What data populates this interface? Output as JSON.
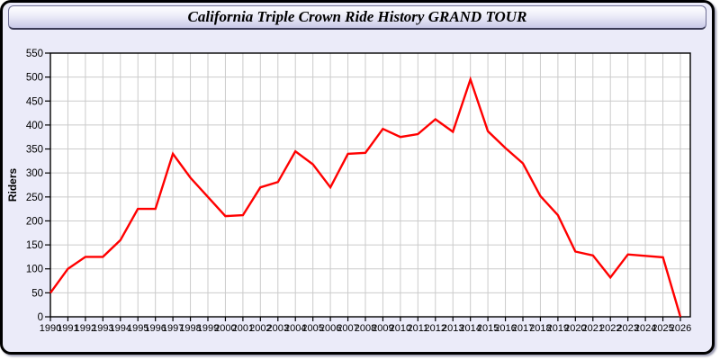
{
  "window": {
    "title": "California Triple Crown Ride History GRAND TOUR"
  },
  "colors": {
    "page_bg": "#EBEBF9",
    "plot_bg": "#FFFFFF",
    "grid": "#CBCBCB",
    "axis_border": "#000000",
    "tick_text": "#000000",
    "line": "#FF0000",
    "titlebar_top": "#FFFFFF",
    "titlebar_bottom": "#C9C9E8"
  },
  "chart_data": {
    "type": "line",
    "title": "California Triple Crown Ride History GRAND TOUR",
    "xlabel": "",
    "ylabel": "Riders",
    "x": [
      1990,
      1991,
      1992,
      1993,
      1994,
      1995,
      1996,
      1997,
      1998,
      1999,
      2000,
      2001,
      2002,
      2003,
      2004,
      2005,
      2006,
      2007,
      2008,
      2009,
      2010,
      2011,
      2012,
      2013,
      2014,
      2015,
      2016,
      2017,
      2018,
      2019,
      2020,
      2021,
      2022,
      2023,
      2024,
      2025,
      2026
    ],
    "series": [
      {
        "name": "Riders",
        "color": "#FF0000",
        "values": [
          50,
          100,
          125,
          125,
          160,
          225,
          225,
          340,
          290,
          250,
          210,
          212,
          270,
          281,
          345,
          318,
          270,
          340,
          342,
          392,
          375,
          381,
          412,
          386,
          495,
          387,
          352,
          320,
          252,
          212,
          136,
          128,
          82,
          130,
          127,
          124,
          0
        ]
      }
    ],
    "ylim": [
      0,
      550
    ],
    "ytick_step": 50,
    "grid": true,
    "legend": false
  }
}
